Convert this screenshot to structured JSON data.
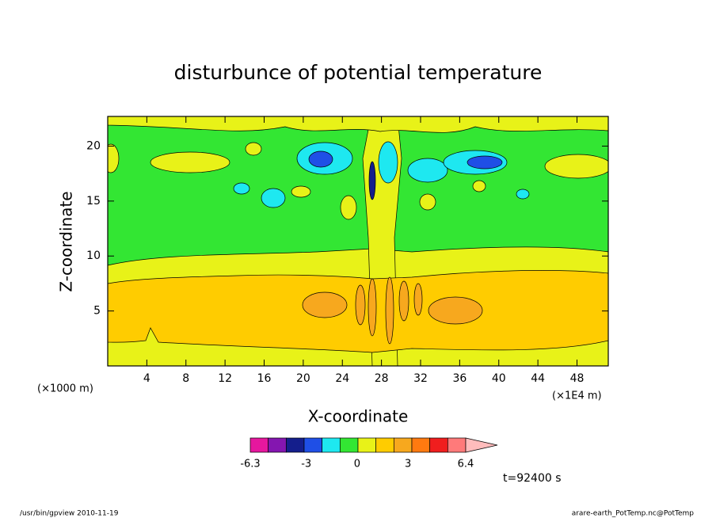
{
  "chart_data": {
    "type": "contour",
    "title": "disturbunce of potential temperature",
    "x_label": "X-coordinate",
    "y_label": "Z-coordinate",
    "y_unit_label": "(×1000 m)",
    "x_unit_label": "(×1E4 m)",
    "xlim": [
      0,
      51.2
    ],
    "xticks": [
      4,
      8,
      12,
      16,
      20,
      24,
      28,
      32,
      36,
      40,
      44,
      48
    ],
    "ylim": [
      0,
      22.7
    ],
    "yticks": [
      5,
      10,
      15,
      20
    ],
    "colorbar": {
      "colors": [
        "#e6179e",
        "#8416b0",
        "#141e8c",
        "#1f4fe6",
        "#1ee8f0",
        "#33e633",
        "#e8f218",
        "#ffcc00",
        "#f7a81e",
        "#ff7a10",
        "#f01e1e",
        "#ff7a7a"
      ],
      "extend_color": "#ffbcbc",
      "lim": [
        -6.3,
        6.4
      ],
      "ticks": [
        -6.3,
        -3,
        0,
        3,
        6.4
      ]
    },
    "annotation": "t=92400 s"
  },
  "footer": {
    "left": "/usr/bin/gpview  2010-11-19",
    "right": "arare-earth_PotTemp.nc@PotTemp"
  }
}
